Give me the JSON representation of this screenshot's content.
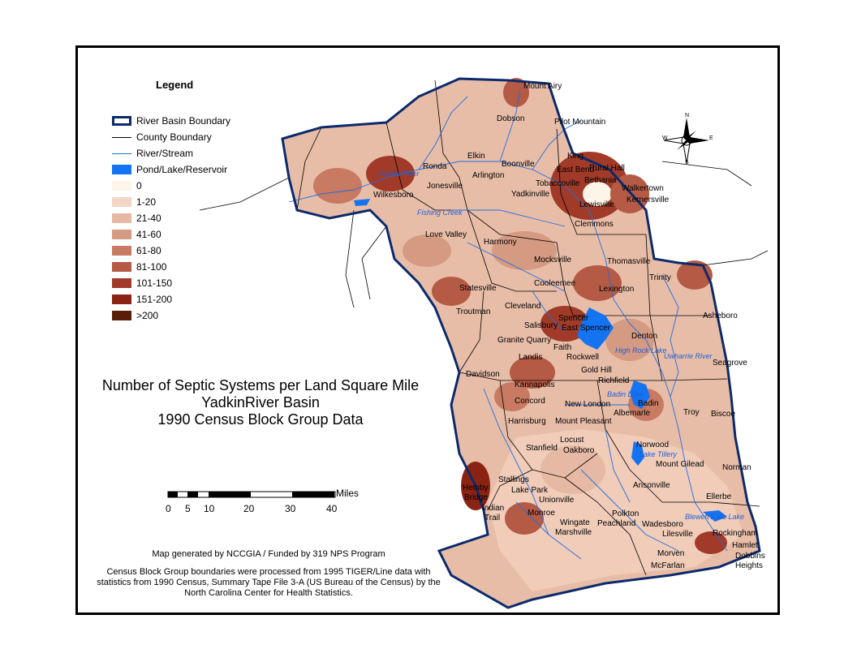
{
  "legend": {
    "title": "Legend",
    "items": [
      {
        "label": "River Basin Boundary",
        "kind": "outline",
        "color": "#0c2a6b"
      },
      {
        "label": "County Boundary",
        "kind": "line",
        "color": "#000000"
      },
      {
        "label": "River/Stream",
        "kind": "line",
        "color": "#1f6fe0"
      },
      {
        "label": "Pond/Lake/Reservoir",
        "kind": "fill",
        "color": "#1473f0"
      },
      {
        "label": "0",
        "kind": "fill",
        "color": "#fdf5e8"
      },
      {
        "label": "1-20",
        "kind": "fill",
        "color": "#f3d6c5"
      },
      {
        "label": "21-40",
        "kind": "fill",
        "color": "#e6b9a4"
      },
      {
        "label": "41-60",
        "kind": "fill",
        "color": "#d59a82"
      },
      {
        "label": "61-80",
        "kind": "fill",
        "color": "#c87a62"
      },
      {
        "label": "81-100",
        "kind": "fill",
        "color": "#b55a44"
      },
      {
        "label": "101-150",
        "kind": "fill",
        "color": "#a13a28"
      },
      {
        "label": "151-200",
        "kind": "fill",
        "color": "#8a2312"
      },
      {
        "label": ">200",
        "kind": "fill",
        "color": "#5a1e08"
      }
    ]
  },
  "title": {
    "line1": "Number of Septic Systems per Land Square Mile",
    "line2": "YadkinRiver Basin",
    "line3": "1990 Census Block Group Data"
  },
  "scale_bar": {
    "unit": "Miles",
    "ticks": [
      "0",
      "5",
      "10",
      "20",
      "30",
      "40"
    ]
  },
  "credits": {
    "line1": "Map generated by NCCGIA / Funded by 319 NPS Program",
    "line2": "Census Block Group boundaries were processed from 1995 TIGER/Line data with statistics from 1990 Census, Summary Tape File 3-A (US Bureau of the Census) by the North Carolina Center for Health Statistics."
  },
  "compass": {
    "n": "N",
    "s": "S",
    "e": "E",
    "w": "W"
  },
  "towns": [
    {
      "name": "Mount Airy",
      "id": "mount-airy"
    },
    {
      "name": "Dobson",
      "id": "dobson"
    },
    {
      "name": "Pilot Mountain",
      "id": "pilot-mountain"
    },
    {
      "name": "King",
      "id": "king"
    },
    {
      "name": "Rural Hall",
      "id": "rural-hall"
    },
    {
      "name": "East Bend",
      "id": "east-bend"
    },
    {
      "name": "Elkin",
      "id": "elkin"
    },
    {
      "name": "Boonville",
      "id": "boonville"
    },
    {
      "name": "Ronda",
      "id": "ronda"
    },
    {
      "name": "Arlington",
      "id": "arlington"
    },
    {
      "name": "Tobaccoville",
      "id": "tobaccoville"
    },
    {
      "name": "Bethania",
      "id": "bethania"
    },
    {
      "name": "Walkertown",
      "id": "walkertown"
    },
    {
      "name": "Kernersville",
      "id": "kernersville"
    },
    {
      "name": "Jonesville",
      "id": "jonesville"
    },
    {
      "name": "Wilkesboro",
      "id": "wilkesboro"
    },
    {
      "name": "Yadkinville",
      "id": "yadkinville"
    },
    {
      "name": "Lewisville",
      "id": "lewisville"
    },
    {
      "name": "Clemmons",
      "id": "clemmons"
    },
    {
      "name": "Love Valley",
      "id": "love-valley"
    },
    {
      "name": "Harmony",
      "id": "harmony"
    },
    {
      "name": "Mocksville",
      "id": "mocksville"
    },
    {
      "name": "Thomasville",
      "id": "thomasville"
    },
    {
      "name": "Trinity",
      "id": "trinity"
    },
    {
      "name": "Cooleemee",
      "id": "cooleemee"
    },
    {
      "name": "Lexington",
      "id": "lexington"
    },
    {
      "name": "Statesville",
      "id": "statesville"
    },
    {
      "name": "Troutman",
      "id": "troutman"
    },
    {
      "name": "Cleveland",
      "id": "cleveland"
    },
    {
      "name": "Asheboro",
      "id": "asheboro"
    },
    {
      "name": "Spencer",
      "id": "spencer"
    },
    {
      "name": "East Spencer",
      "id": "east-spencer"
    },
    {
      "name": "Salisbury",
      "id": "salisbury"
    },
    {
      "name": "Denton",
      "id": "denton"
    },
    {
      "name": "Granite Quarry",
      "id": "granite-quarry"
    },
    {
      "name": "Faith",
      "id": "faith"
    },
    {
      "name": "Landis",
      "id": "landis"
    },
    {
      "name": "Rockwell",
      "id": "rockwell"
    },
    {
      "name": "Seagrove",
      "id": "seagrove"
    },
    {
      "name": "Gold Hill",
      "id": "gold-hill"
    },
    {
      "name": "Davidson",
      "id": "davidson"
    },
    {
      "name": "Kannapolis",
      "id": "kannapolis"
    },
    {
      "name": "Richfield",
      "id": "richfield"
    },
    {
      "name": "Concord",
      "id": "concord"
    },
    {
      "name": "New London",
      "id": "new-london"
    },
    {
      "name": "Badin",
      "id": "badin"
    },
    {
      "name": "Albemarle",
      "id": "albemarle"
    },
    {
      "name": "Troy",
      "id": "troy"
    },
    {
      "name": "Biscoe",
      "id": "biscoe"
    },
    {
      "name": "Harrisburg",
      "id": "harrisburg"
    },
    {
      "name": "Mount Pleasant",
      "id": "mount-pleasant"
    },
    {
      "name": "Locust",
      "id": "locust"
    },
    {
      "name": "Stanfield",
      "id": "stanfield"
    },
    {
      "name": "Oakboro",
      "id": "oakboro"
    },
    {
      "name": "Norwood",
      "id": "norwood"
    },
    {
      "name": "Mount Gilead",
      "id": "mount-gilead"
    },
    {
      "name": "Norman",
      "id": "norman"
    },
    {
      "name": "Stallings",
      "id": "stallings"
    },
    {
      "name": "Hemby",
      "id": "hemby"
    },
    {
      "name": "Bridge",
      "id": "bridge"
    },
    {
      "name": "Lake Park",
      "id": "lake-park"
    },
    {
      "name": "Unionville",
      "id": "unionville"
    },
    {
      "name": "Ansonville",
      "id": "ansonville"
    },
    {
      "name": "Ellerbe",
      "id": "ellerbe"
    },
    {
      "name": "Indian",
      "id": "indian"
    },
    {
      "name": "Trail",
      "id": "trail"
    },
    {
      "name": "Monroe",
      "id": "monroe"
    },
    {
      "name": "Polkton",
      "id": "polkton"
    },
    {
      "name": "Wingate",
      "id": "wingate"
    },
    {
      "name": "Peachland",
      "id": "peachland"
    },
    {
      "name": "Wadesboro",
      "id": "wadesboro"
    },
    {
      "name": "Marshville",
      "id": "marshville"
    },
    {
      "name": "Lilesville",
      "id": "lilesville"
    },
    {
      "name": "Rockingham",
      "id": "rockingham"
    },
    {
      "name": "Hamlet",
      "id": "hamlet"
    },
    {
      "name": "Morven",
      "id": "morven"
    },
    {
      "name": "Dobbins",
      "id": "dobbins"
    },
    {
      "name": "Heights",
      "id": "heights"
    },
    {
      "name": "McFarlan",
      "id": "mcfarlan"
    }
  ],
  "water_labels": [
    {
      "name": "Yadkin River",
      "id": "yadkin-river"
    },
    {
      "name": "Fishing Creek",
      "id": "fishing-creek"
    },
    {
      "name": "High Rock Lake",
      "id": "high-rock-lake"
    },
    {
      "name": "Uwharrie River",
      "id": "uwharrie-river"
    },
    {
      "name": "Badin Lake",
      "id": "badin-lake"
    },
    {
      "name": "Lake Tillery",
      "id": "lake-tillery"
    },
    {
      "name": "Blewett Falls Lake",
      "id": "blewett-falls-lake"
    }
  ]
}
